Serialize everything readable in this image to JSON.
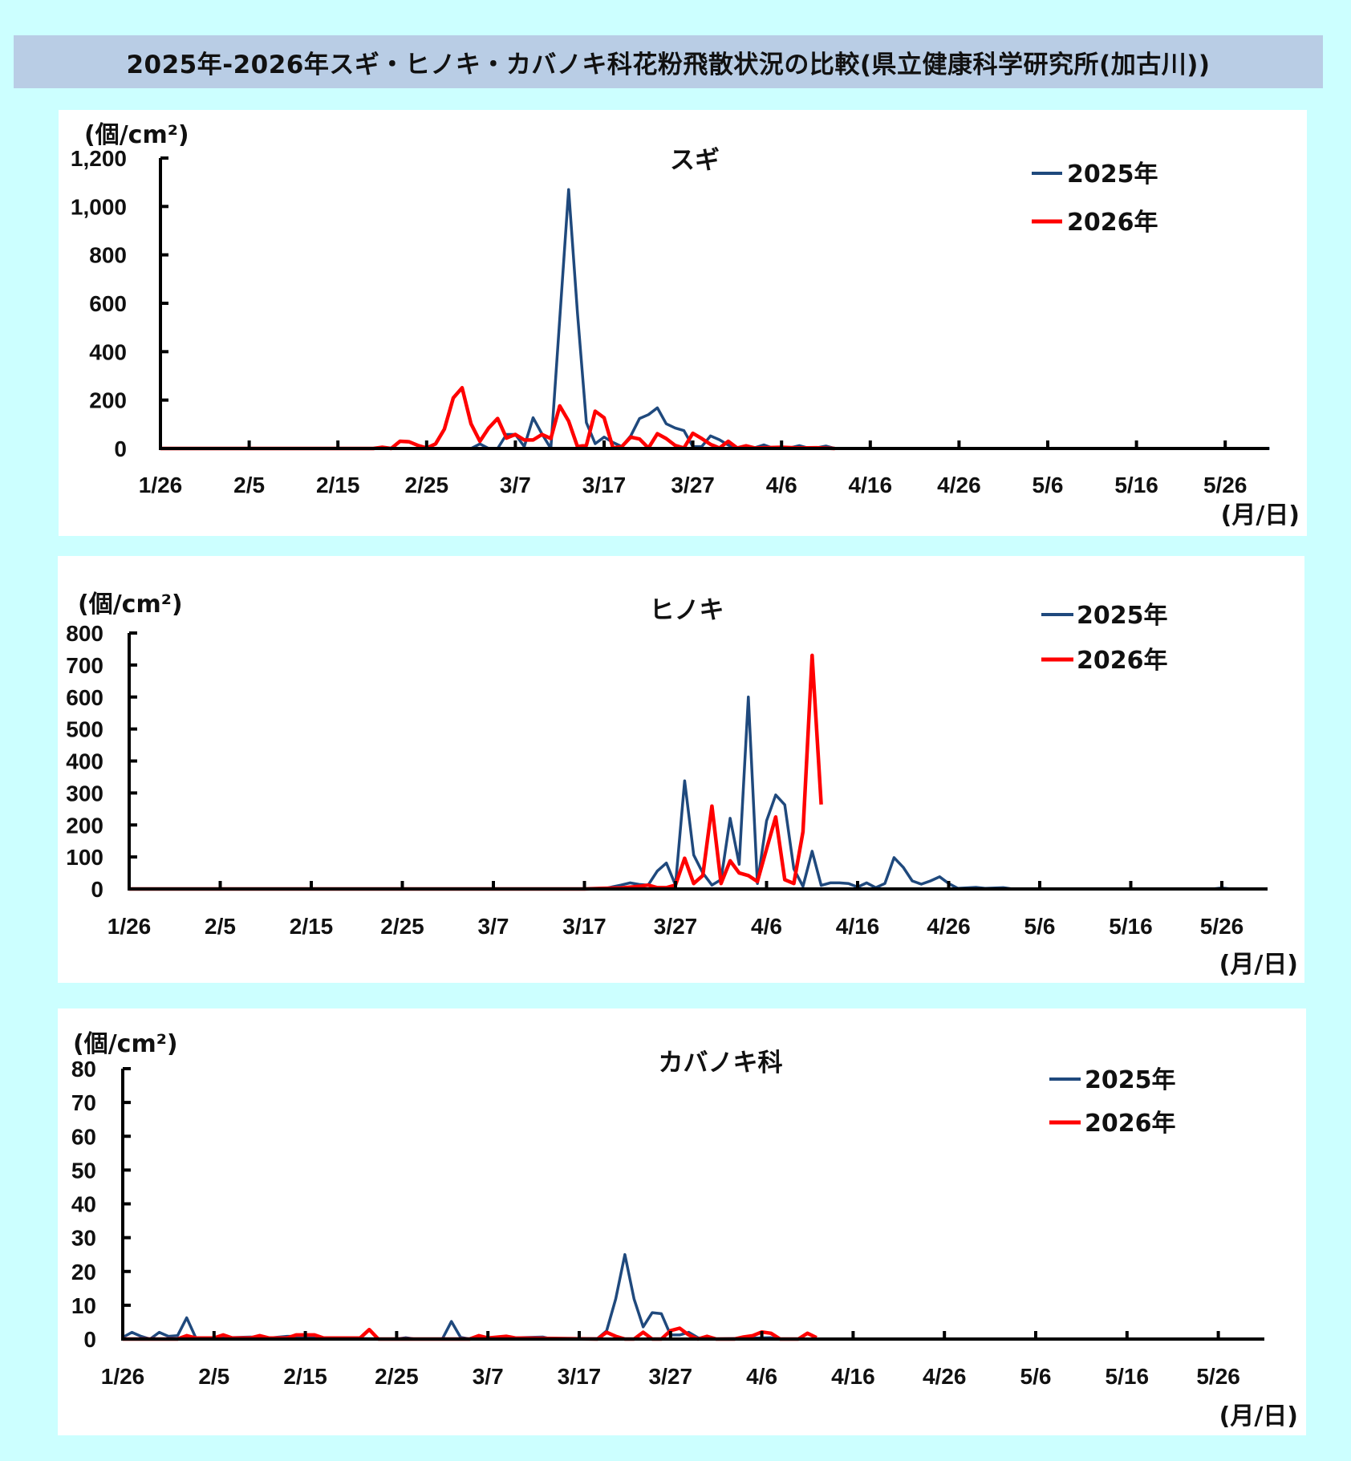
{
  "page_title": "2025年-2026年スギ・ヒノキ・カバノキ科花粉飛散状況の比較(県立健康科学研究所(加古川))",
  "colors": {
    "background": "#ccffff",
    "title_bar": "#b9cde5",
    "series_2025": "#1f497d",
    "series_2026": "#ff0000"
  },
  "chart_data": [
    {
      "type": "line",
      "title": "スギ",
      "ylabel": "(個/cm²)",
      "xlabel": "(月/日)",
      "start_date": "1/26",
      "x_unit": "days since 1/26",
      "x_range": [
        0,
        125
      ],
      "ylim": [
        0,
        1200
      ],
      "yticks": [
        0,
        200,
        400,
        600,
        800,
        1000,
        1200
      ],
      "ytick_labels": [
        "0",
        "200",
        "400",
        "600",
        "800",
        "1,000",
        "1,200"
      ],
      "xtick_labels": [
        "1/26",
        "2/5",
        "2/15",
        "2/25",
        "3/7",
        "3/17",
        "3/27",
        "4/6",
        "4/16",
        "4/26",
        "5/6",
        "5/16",
        "5/26"
      ],
      "legend_position": "top-right",
      "series": [
        {
          "name": "2025年",
          "points": [
            [
              0,
              0
            ],
            [
              35,
              0
            ],
            [
              36,
              19
            ],
            [
              37,
              0
            ],
            [
              38,
              0
            ],
            [
              39,
              58
            ],
            [
              40,
              58
            ],
            [
              41,
              8
            ],
            [
              42,
              127
            ],
            [
              43,
              60
            ],
            [
              44,
              0
            ],
            [
              45,
              535
            ],
            [
              46,
              1070
            ],
            [
              47,
              560
            ],
            [
              48,
              107
            ],
            [
              49,
              20
            ],
            [
              50,
              47
            ],
            [
              51,
              25
            ],
            [
              52,
              8
            ],
            [
              53,
              52
            ],
            [
              54,
              124
            ],
            [
              55,
              140
            ],
            [
              56,
              168
            ],
            [
              57,
              102
            ],
            [
              58,
              85
            ],
            [
              59,
              74
            ],
            [
              60,
              8
            ],
            [
              61,
              8
            ],
            [
              62,
              52
            ],
            [
              63,
              36
            ],
            [
              64,
              14
            ],
            [
              65,
              2
            ],
            [
              67,
              3
            ],
            [
              68,
              15
            ],
            [
              69,
              2
            ],
            [
              71,
              3
            ],
            [
              72,
              12
            ],
            [
              73,
              2
            ],
            [
              74,
              3
            ],
            [
              75,
              10
            ],
            [
              76,
              0
            ],
            [
              125,
              0
            ]
          ]
        },
        {
          "name": "2026年",
          "points": [
            [
              0,
              0
            ],
            [
              24,
              0
            ],
            [
              25,
              5
            ],
            [
              26,
              0
            ],
            [
              27,
              30
            ],
            [
              28,
              28
            ],
            [
              29,
              13
            ],
            [
              30,
              2
            ],
            [
              31,
              19
            ],
            [
              32,
              80
            ],
            [
              33,
              209
            ],
            [
              34,
              251
            ],
            [
              35,
              102
            ],
            [
              36,
              30
            ],
            [
              37,
              85
            ],
            [
              38,
              124
            ],
            [
              39,
              43
            ],
            [
              40,
              58
            ],
            [
              41,
              35
            ],
            [
              42,
              35
            ],
            [
              43,
              58
            ],
            [
              44,
              41
            ],
            [
              45,
              176
            ],
            [
              46,
              113
            ],
            [
              47,
              8
            ],
            [
              48,
              13
            ],
            [
              49,
              154
            ],
            [
              50,
              127
            ],
            [
              51,
              2
            ],
            [
              52,
              8
            ],
            [
              53,
              47
            ],
            [
              54,
              39
            ],
            [
              55,
              2
            ],
            [
              56,
              61
            ],
            [
              57,
              41
            ],
            [
              58,
              13
            ],
            [
              59,
              2
            ],
            [
              60,
              63
            ],
            [
              61,
              41
            ],
            [
              62,
              17
            ],
            [
              63,
              2
            ],
            [
              64,
              30
            ],
            [
              65,
              2
            ],
            [
              66,
              11
            ],
            [
              67,
              2
            ],
            [
              68,
              3
            ],
            [
              70,
              5
            ],
            [
              72,
              2
            ],
            [
              74,
              3
            ],
            [
              76,
              0
            ]
          ]
        }
      ]
    },
    {
      "type": "line",
      "title": "ヒノキ",
      "ylabel": "(個/cm²)",
      "xlabel": "(月/日)",
      "start_date": "1/26",
      "x_unit": "days since 1/26",
      "x_range": [
        0,
        125
      ],
      "ylim": [
        0,
        800
      ],
      "yticks": [
        0,
        100,
        200,
        300,
        400,
        500,
        600,
        700,
        800
      ],
      "ytick_labels": [
        "0",
        "100",
        "200",
        "300",
        "400",
        "500",
        "600",
        "700",
        "800"
      ],
      "xtick_labels": [
        "1/26",
        "2/5",
        "2/15",
        "2/25",
        "3/7",
        "3/17",
        "3/27",
        "4/6",
        "4/16",
        "4/26",
        "5/6",
        "5/16",
        "5/26"
      ],
      "legend_position": "top-right",
      "series": [
        {
          "name": "2025年",
          "points": [
            [
              0,
              0
            ],
            [
              52,
              0
            ],
            [
              54,
              12
            ],
            [
              55,
              19
            ],
            [
              56,
              14
            ],
            [
              57,
              12
            ],
            [
              58,
              56
            ],
            [
              59,
              81
            ],
            [
              60,
              12
            ],
            [
              61,
              338
            ],
            [
              62,
              106
            ],
            [
              63,
              50
            ],
            [
              64,
              12
            ],
            [
              65,
              29
            ],
            [
              66,
              221
            ],
            [
              67,
              77
            ],
            [
              68,
              600
            ],
            [
              69,
              17
            ],
            [
              70,
              213
            ],
            [
              71,
              294
            ],
            [
              72,
              263
            ],
            [
              73,
              63
            ],
            [
              74,
              8
            ],
            [
              75,
              118
            ],
            [
              76,
              11
            ],
            [
              77,
              19
            ],
            [
              78,
              19
            ],
            [
              79,
              17
            ],
            [
              80,
              6
            ],
            [
              81,
              19
            ],
            [
              82,
              4
            ],
            [
              83,
              17
            ],
            [
              84,
              98
            ],
            [
              85,
              68
            ],
            [
              86,
              25
            ],
            [
              87,
              15
            ],
            [
              88,
              25
            ],
            [
              89,
              38
            ],
            [
              90,
              17
            ],
            [
              91,
              2
            ],
            [
              93,
              5
            ],
            [
              94,
              2
            ],
            [
              96,
              4
            ],
            [
              97,
              0
            ],
            [
              119,
              0
            ],
            [
              120,
              3
            ],
            [
              121,
              0
            ],
            [
              125,
              0
            ]
          ]
        },
        {
          "name": "2026年",
          "points": [
            [
              0,
              0
            ],
            [
              50,
              0
            ],
            [
              52,
              2
            ],
            [
              54,
              3
            ],
            [
              56,
              8
            ],
            [
              57,
              12
            ],
            [
              58,
              4
            ],
            [
              59,
              4
            ],
            [
              60,
              12
            ],
            [
              61,
              96
            ],
            [
              62,
              17
            ],
            [
              63,
              42
            ],
            [
              64,
              259
            ],
            [
              65,
              17
            ],
            [
              66,
              88
            ],
            [
              67,
              50
            ],
            [
              68,
              42
            ],
            [
              69,
              23
            ],
            [
              70,
              125
            ],
            [
              71,
              225
            ],
            [
              72,
              29
            ],
            [
              73,
              17
            ],
            [
              74,
              179
            ],
            [
              75,
              730
            ],
            [
              76,
              264
            ]
          ]
        }
      ]
    },
    {
      "type": "line",
      "title": "カバノキ科",
      "ylabel": "(個/cm²)",
      "xlabel": "(月/日)",
      "start_date": "1/26",
      "x_unit": "days since 1/26",
      "x_range": [
        0,
        125
      ],
      "ylim": [
        0,
        80
      ],
      "yticks": [
        0,
        10,
        20,
        30,
        40,
        50,
        60,
        70,
        80
      ],
      "ytick_labels": [
        "0",
        "10",
        "20",
        "30",
        "40",
        "50",
        "60",
        "70",
        "80"
      ],
      "xtick_labels": [
        "1/26",
        "2/5",
        "2/15",
        "2/25",
        "3/7",
        "3/17",
        "3/27",
        "4/6",
        "4/16",
        "4/26",
        "5/6",
        "5/16",
        "5/26"
      ],
      "legend_position": "top-right",
      "series": [
        {
          "name": "2025年",
          "points": [
            [
              0,
              0.5
            ],
            [
              1,
              2
            ],
            [
              2,
              0.8
            ],
            [
              3,
              0
            ],
            [
              4,
              2
            ],
            [
              5,
              0.8
            ],
            [
              6,
              1
            ],
            [
              7,
              6.3
            ],
            [
              8,
              0.4
            ],
            [
              10,
              0.3
            ],
            [
              14,
              0.6
            ],
            [
              16,
              0.3
            ],
            [
              18,
              0.8
            ],
            [
              20,
              0.8
            ],
            [
              22,
              0.3
            ],
            [
              30,
              0
            ],
            [
              31,
              0.4
            ],
            [
              32,
              0
            ],
            [
              35,
              0
            ],
            [
              36,
              5.2
            ],
            [
              37,
              0.5
            ],
            [
              38,
              0
            ],
            [
              46,
              0.6
            ],
            [
              47,
              0
            ],
            [
              52,
              0.2
            ],
            [
              53,
              2.4
            ],
            [
              54,
              11.9
            ],
            [
              55,
              25
            ],
            [
              56,
              11.9
            ],
            [
              57,
              3.6
            ],
            [
              58,
              7.8
            ],
            [
              59,
              7.5
            ],
            [
              60,
              1.2
            ],
            [
              61,
              1.2
            ],
            [
              62,
              2
            ],
            [
              63,
              0.4
            ],
            [
              64,
              0
            ],
            [
              71,
              0.4
            ],
            [
              72,
              0
            ],
            [
              125,
              0
            ]
          ]
        },
        {
          "name": "2026年",
          "points": [
            [
              0,
              0
            ],
            [
              6,
              0
            ],
            [
              7,
              1
            ],
            [
              8,
              0.3
            ],
            [
              10,
              0.3
            ],
            [
              11,
              1.2
            ],
            [
              12,
              0.3
            ],
            [
              14,
              0.3
            ],
            [
              15,
              1
            ],
            [
              16,
              0.3
            ],
            [
              18,
              0.3
            ],
            [
              19,
              1.2
            ],
            [
              21,
              1.2
            ],
            [
              22,
              0.3
            ],
            [
              26,
              0.3
            ],
            [
              27,
              2.8
            ],
            [
              28,
              0
            ],
            [
              38,
              0
            ],
            [
              39,
              1
            ],
            [
              40,
              0.3
            ],
            [
              42,
              0.8
            ],
            [
              43,
              0.3
            ],
            [
              52,
              0
            ],
            [
              53,
              2
            ],
            [
              54,
              0.8
            ],
            [
              55,
              0
            ],
            [
              56,
              0
            ],
            [
              57,
              2
            ],
            [
              58,
              0
            ],
            [
              59,
              0
            ],
            [
              60,
              2.5
            ],
            [
              61,
              3.2
            ],
            [
              62,
              1.2
            ],
            [
              63,
              0
            ],
            [
              64,
              0.8
            ],
            [
              65,
              0
            ],
            [
              67,
              0
            ],
            [
              68,
              0.6
            ],
            [
              69,
              1
            ],
            [
              70,
              2.1
            ],
            [
              71,
              1.7
            ],
            [
              72,
              0
            ],
            [
              74,
              0
            ],
            [
              75,
              1.7
            ],
            [
              76,
              0.4
            ]
          ]
        }
      ]
    }
  ]
}
